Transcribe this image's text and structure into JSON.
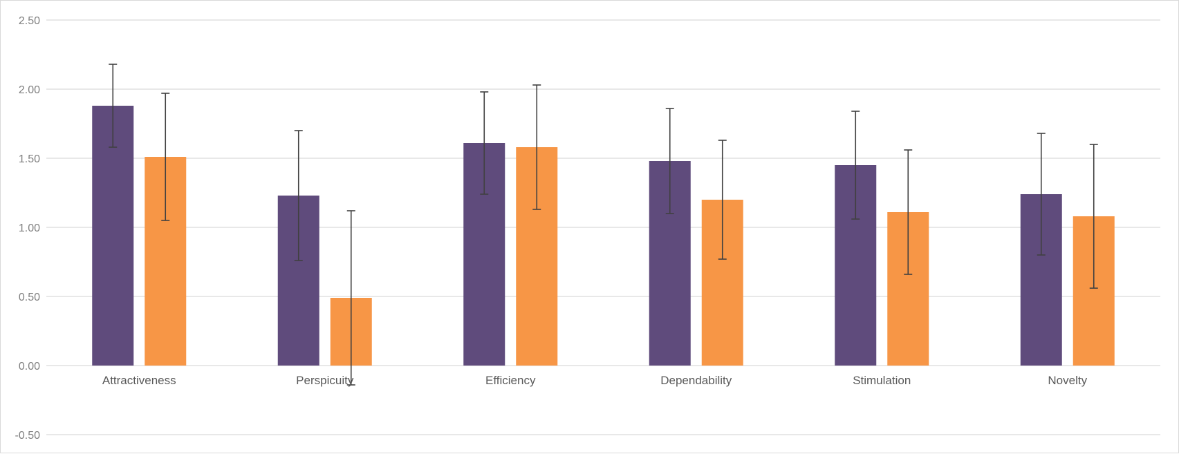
{
  "chart_data": {
    "type": "bar",
    "categories": [
      "Attractiveness",
      "Perspicuity",
      "Efficiency",
      "Dependability",
      "Stimulation",
      "Novelty"
    ],
    "series": [
      {
        "values": [
          1.88,
          1.23,
          1.61,
          1.48,
          1.45,
          1.24
        ],
        "error": [
          0.3,
          0.47,
          0.37,
          0.38,
          0.39,
          0.44
        ],
        "color": "#5f4b7c"
      },
      {
        "values": [
          1.51,
          0.49,
          1.58,
          1.2,
          1.11,
          1.08
        ],
        "error": [
          0.46,
          0.63,
          0.45,
          0.43,
          0.45,
          0.52
        ],
        "color": "#f79646"
      }
    ],
    "y_ticks": [
      "2.50",
      "2.00",
      "1.50",
      "1.00",
      "0.50",
      "0.00",
      "-0.50"
    ],
    "ylim": [
      -0.5,
      2.5
    ],
    "grid": true,
    "gridline_color": "#d9d9d9",
    "error_bar_color": "#404040"
  }
}
